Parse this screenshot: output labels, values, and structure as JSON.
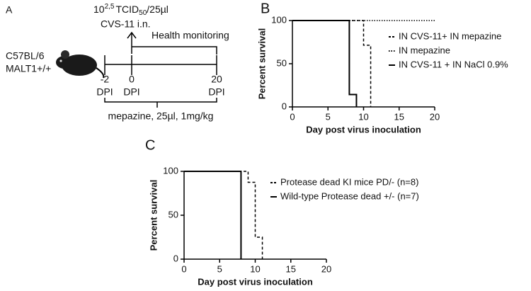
{
  "panel_a": {
    "label": "A",
    "dose": {
      "base": "10",
      "exponent": "2,5",
      "unit": "TCID",
      "subscript": "50",
      "per": "/25µl"
    },
    "route": "CVS-11 i.n.",
    "monitoring": "Health monitoring",
    "strain": [
      "C57BL/6",
      "MALT1+/+"
    ],
    "timepoints": [
      {
        "day": "-2",
        "unit": "DPI"
      },
      {
        "day": "0",
        "unit": "DPI"
      },
      {
        "day": "20",
        "unit": "DPI"
      }
    ],
    "treatment": "mepazine, 25µl, 1mg/kg"
  },
  "chart_data": [
    {
      "panel_label": "B",
      "type": "line",
      "step": true,
      "xlabel": "Day post virus inoculation",
      "ylabel": "Percent survival",
      "xlim": [
        0,
        20
      ],
      "xticks": [
        0,
        5,
        10,
        15,
        20
      ],
      "ylim": [
        0,
        100
      ],
      "yticks": [
        0,
        50,
        100
      ],
      "legend": "right",
      "series": [
        {
          "name": "IN CVS-11+ IN mepazine",
          "color": "#000000",
          "style": "dashed",
          "x": [
            0,
            10,
            11
          ],
          "values": [
            100,
            71.4,
            0
          ]
        },
        {
          "name": "IN mepazine",
          "color": "#000000",
          "style": "dotted",
          "x": [
            0,
            20
          ],
          "values": [
            100,
            100
          ]
        },
        {
          "name": "IN CVS-11 + IN NaCl 0.9%",
          "color": "#000000",
          "style": "solid",
          "x": [
            0,
            8,
            9
          ],
          "values": [
            100,
            14.3,
            0
          ]
        }
      ]
    },
    {
      "panel_label": "C",
      "type": "line",
      "step": true,
      "xlabel": "Day post virus inoculation",
      "ylabel": "Percent survival",
      "xlim": [
        0,
        20
      ],
      "xticks": [
        0,
        5,
        10,
        15,
        20
      ],
      "ylim": [
        0,
        100
      ],
      "yticks": [
        0,
        50,
        100
      ],
      "legend": "right",
      "series": [
        {
          "name": "Protease dead KI mice PD/- (n=8)",
          "color": "#000000",
          "style": "dashed",
          "x": [
            0,
            9,
            10,
            11
          ],
          "values": [
            100,
            87.5,
            25,
            0
          ]
        },
        {
          "name": "Wild-type Protease dead +/- (n=7)",
          "color": "#000000",
          "style": "solid",
          "x": [
            0,
            8
          ],
          "values": [
            100,
            0
          ]
        }
      ]
    }
  ]
}
